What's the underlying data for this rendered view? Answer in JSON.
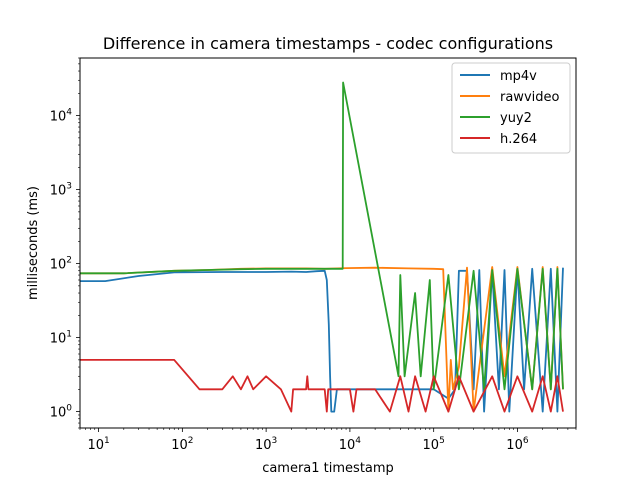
{
  "chart_data": {
    "type": "line",
    "title": "Difference in camera timestamps - codec configurations",
    "xlabel": "camera1 timestamp",
    "ylabel": "milliseconds (ms)",
    "xscale": "log",
    "yscale": "log",
    "xlim": [
      6,
      5000000
    ],
    "ylim": [
      0.6,
      60000
    ],
    "grid": false,
    "legend": "top-right",
    "x_ticks": [
      {
        "value": 10,
        "base": "10",
        "exp": "1"
      },
      {
        "value": 100,
        "base": "10",
        "exp": "2"
      },
      {
        "value": 1000,
        "base": "10",
        "exp": "3"
      },
      {
        "value": 10000,
        "base": "10",
        "exp": "4"
      },
      {
        "value": 100000,
        "base": "10",
        "exp": "5"
      },
      {
        "value": 1000000,
        "base": "10",
        "exp": "6"
      }
    ],
    "y_ticks": [
      {
        "value": 1,
        "base": "10",
        "exp": "0"
      },
      {
        "value": 10,
        "base": "10",
        "exp": "1"
      },
      {
        "value": 100,
        "base": "10",
        "exp": "2"
      },
      {
        "value": 1000,
        "base": "10",
        "exp": "3"
      },
      {
        "value": 10000,
        "base": "10",
        "exp": "4"
      }
    ],
    "series": [
      {
        "name": "mp4v",
        "color": "#1f77b4",
        "points": [
          [
            6,
            58
          ],
          [
            12,
            58
          ],
          [
            30,
            68
          ],
          [
            80,
            76
          ],
          [
            300,
            77
          ],
          [
            1000,
            77
          ],
          [
            2000,
            78
          ],
          [
            3000,
            77
          ],
          [
            4000,
            79
          ],
          [
            5000,
            80
          ],
          [
            5300,
            60
          ],
          [
            5600,
            15
          ],
          [
            5800,
            3
          ],
          [
            6000,
            1
          ],
          [
            6500,
            1
          ],
          [
            7000,
            2
          ],
          [
            8000,
            2
          ],
          [
            9000,
            2
          ],
          [
            10000,
            2
          ],
          [
            20000,
            2
          ],
          [
            50000,
            2
          ],
          [
            100000,
            2
          ],
          [
            150000,
            1.5
          ],
          [
            180000,
            2
          ],
          [
            200000,
            80
          ],
          [
            250000,
            80
          ],
          [
            300000,
            2
          ],
          [
            350000,
            82
          ],
          [
            400000,
            1
          ],
          [
            500000,
            80
          ],
          [
            600000,
            2
          ],
          [
            700000,
            82
          ],
          [
            800000,
            1
          ],
          [
            1000000,
            85
          ],
          [
            1200000,
            2
          ],
          [
            1500000,
            85
          ],
          [
            2000000,
            1
          ],
          [
            2500000,
            85
          ],
          [
            3000000,
            1
          ],
          [
            3500000,
            88
          ]
        ]
      },
      {
        "name": "rawvideo",
        "color": "#ff7f0e",
        "points": [
          [
            6,
            74
          ],
          [
            20,
            74
          ],
          [
            80,
            80
          ],
          [
            200,
            82
          ],
          [
            500,
            85
          ],
          [
            1000,
            86
          ],
          [
            3000,
            86
          ],
          [
            5000,
            85
          ],
          [
            9000,
            87
          ],
          [
            20000,
            88
          ],
          [
            50000,
            86
          ],
          [
            100000,
            85
          ],
          [
            130000,
            84
          ],
          [
            150000,
            1
          ],
          [
            160000,
            5
          ],
          [
            170000,
            2
          ],
          [
            200000,
            4
          ],
          [
            250000,
            88
          ],
          [
            300000,
            1
          ],
          [
            500000,
            90
          ],
          [
            700000,
            3
          ],
          [
            1000000,
            90
          ],
          [
            1500000,
            2
          ],
          [
            2000000,
            90
          ],
          [
            2500000,
            2
          ],
          [
            3000000,
            90
          ],
          [
            3500000,
            2
          ]
        ]
      },
      {
        "name": "yuy2",
        "color": "#2ca02c",
        "points": [
          [
            6,
            74
          ],
          [
            20,
            74
          ],
          [
            80,
            80
          ],
          [
            200,
            82
          ],
          [
            500,
            84
          ],
          [
            1000,
            85
          ],
          [
            3000,
            85
          ],
          [
            5000,
            85
          ],
          [
            8200,
            85
          ],
          [
            8300,
            28000
          ],
          [
            35000,
            5
          ],
          [
            38000,
            3
          ],
          [
            40000,
            70
          ],
          [
            45000,
            3
          ],
          [
            60000,
            40
          ],
          [
            70000,
            3
          ],
          [
            90000,
            60
          ],
          [
            100000,
            2
          ],
          [
            150000,
            70
          ],
          [
            200000,
            2
          ],
          [
            300000,
            80
          ],
          [
            400000,
            2
          ],
          [
            500000,
            82
          ],
          [
            700000,
            2
          ],
          [
            1000000,
            85
          ],
          [
            1500000,
            2
          ],
          [
            2000000,
            85
          ],
          [
            2500000,
            2
          ],
          [
            3000000,
            85
          ],
          [
            3500000,
            2
          ]
        ]
      },
      {
        "name": "h.264",
        "color": "#d62728",
        "points": [
          [
            6,
            5
          ],
          [
            80,
            5
          ],
          [
            160,
            2
          ],
          [
            300,
            2
          ],
          [
            400,
            3
          ],
          [
            500,
            2
          ],
          [
            600,
            3
          ],
          [
            700,
            2
          ],
          [
            1000,
            3
          ],
          [
            1500,
            2
          ],
          [
            2000,
            1
          ],
          [
            2100,
            2
          ],
          [
            3000,
            2
          ],
          [
            3100,
            3
          ],
          [
            3200,
            2
          ],
          [
            5000,
            2
          ],
          [
            5300,
            1
          ],
          [
            5500,
            2
          ],
          [
            10000,
            2
          ],
          [
            11000,
            1
          ],
          [
            12000,
            2
          ],
          [
            20000,
            2
          ],
          [
            30000,
            1
          ],
          [
            40000,
            3
          ],
          [
            50000,
            1
          ],
          [
            60000,
            3
          ],
          [
            80000,
            1
          ],
          [
            100000,
            3
          ],
          [
            150000,
            1
          ],
          [
            200000,
            3
          ],
          [
            300000,
            1
          ],
          [
            500000,
            3
          ],
          [
            700000,
            1
          ],
          [
            1000000,
            3
          ],
          [
            1500000,
            1
          ],
          [
            2000000,
            3
          ],
          [
            2500000,
            1
          ],
          [
            3000000,
            3
          ],
          [
            3500000,
            1
          ]
        ]
      }
    ]
  }
}
